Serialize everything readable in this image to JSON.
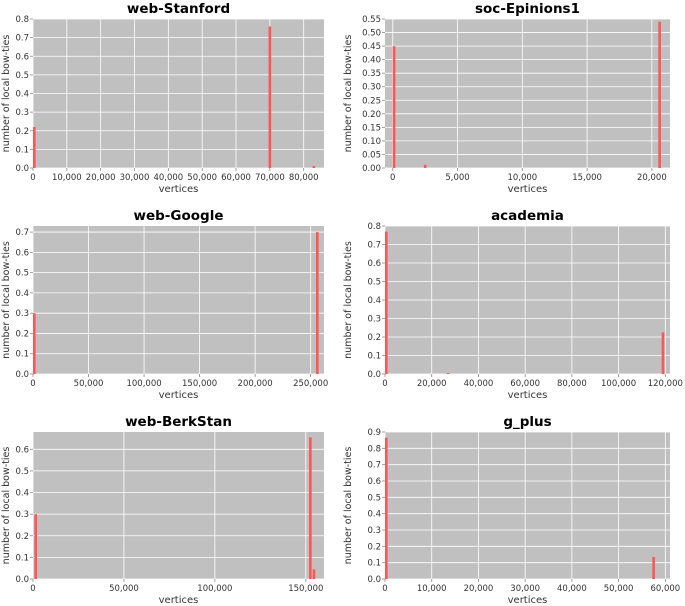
{
  "colors": {
    "plot_background": "#c0c0c0",
    "grid": "#ffffff",
    "bar": "#ff5555",
    "axis_text": "#333333",
    "title_text": "#000000"
  },
  "chart_data": [
    {
      "type": "bar",
      "title": "web-Stanford",
      "xlabel": "vertices",
      "ylabel": "number of local bow-ties",
      "xlim": [
        0,
        86000
      ],
      "ylim": [
        0,
        0.8
      ],
      "xticks": [
        0,
        10000,
        20000,
        30000,
        40000,
        50000,
        60000,
        70000,
        80000
      ],
      "xtick_labels": [
        "0",
        "10,000",
        "20,000",
        "30,000",
        "40,000",
        "50,000",
        "60,000",
        "70,000",
        "80,000"
      ],
      "yticks": [
        0,
        0.1,
        0.2,
        0.3,
        0.4,
        0.5,
        0.6,
        0.7,
        0.8
      ],
      "ytick_labels": [
        "0.0",
        "0.1",
        "0.2",
        "0.3",
        "0.4",
        "0.5",
        "0.6",
        "0.7",
        "0.8"
      ],
      "grid": true,
      "x": [
        200,
        70000,
        83000
      ],
      "values": [
        0.22,
        0.76,
        0.01
      ]
    },
    {
      "type": "bar",
      "title": "soc-Epinions1",
      "xlabel": "vertices",
      "ylabel": "number of local bow-ties",
      "xlim": [
        -600,
        21400
      ],
      "ylim": [
        0,
        0.55
      ],
      "xticks": [
        0,
        5000,
        10000,
        15000,
        20000
      ],
      "xtick_labels": [
        "0",
        "5,000",
        "10,000",
        "15,000",
        "20,000"
      ],
      "yticks": [
        0,
        0.05,
        0.1,
        0.15,
        0.2,
        0.25,
        0.3,
        0.35,
        0.4,
        0.45,
        0.5,
        0.55
      ],
      "ytick_labels": [
        "0.00",
        "0.05",
        "0.10",
        "0.15",
        "0.20",
        "0.25",
        "0.30",
        "0.35",
        "0.40",
        "0.45",
        "0.50",
        "0.55"
      ],
      "grid": true,
      "x": [
        100,
        2500,
        20600
      ],
      "values": [
        0.45,
        0.012,
        0.54
      ]
    },
    {
      "type": "bar",
      "title": "web-Google",
      "xlabel": "vertices",
      "ylabel": "number of local bow-ties",
      "xlim": [
        0,
        262000
      ],
      "ylim": [
        0,
        0.73
      ],
      "xticks": [
        0,
        50000,
        100000,
        150000,
        200000,
        250000
      ],
      "xtick_labels": [
        "0",
        "50,000",
        "100,000",
        "150,000",
        "200,000",
        "250,000"
      ],
      "yticks": [
        0,
        0.1,
        0.2,
        0.3,
        0.4,
        0.5,
        0.6,
        0.7
      ],
      "ytick_labels": [
        "0.0",
        "0.1",
        "0.2",
        "0.3",
        "0.4",
        "0.5",
        "0.6",
        "0.7"
      ],
      "grid": true,
      "x": [
        500,
        256000
      ],
      "values": [
        0.3,
        0.7
      ]
    },
    {
      "type": "bar",
      "title": "academia",
      "xlabel": "vertices",
      "ylabel": "number of local bow-ties",
      "xlim": [
        0,
        122000
      ],
      "ylim": [
        0,
        0.8
      ],
      "xticks": [
        0,
        20000,
        40000,
        60000,
        80000,
        100000,
        120000
      ],
      "xtick_labels": [
        "0",
        "20,000",
        "40,000",
        "60,000",
        "80,000",
        "100,000",
        "120,000"
      ],
      "yticks": [
        0,
        0.1,
        0.2,
        0.3,
        0.4,
        0.5,
        0.6,
        0.7,
        0.8
      ],
      "ytick_labels": [
        "0.0",
        "0.1",
        "0.2",
        "0.3",
        "0.4",
        "0.5",
        "0.6",
        "0.7",
        "0.8"
      ],
      "grid": true,
      "x": [
        300,
        27000,
        119000
      ],
      "values": [
        0.77,
        0.005,
        0.225
      ]
    },
    {
      "type": "bar",
      "title": "web-BerkStan",
      "xlabel": "vertices",
      "ylabel": "number of local bow-ties",
      "xlim": [
        0,
        160000
      ],
      "ylim": [
        0,
        0.68
      ],
      "xticks": [
        0,
        50000,
        100000,
        150000
      ],
      "xtick_labels": [
        "0",
        "50,000",
        "100,000",
        "150,000"
      ],
      "yticks": [
        0,
        0.1,
        0.2,
        0.3,
        0.4,
        0.5,
        0.6
      ],
      "ytick_labels": [
        "0.0",
        "0.1",
        "0.2",
        "0.3",
        "0.4",
        "0.5",
        "0.6"
      ],
      "grid": true,
      "x": [
        1500,
        152500,
        154500
      ],
      "values": [
        0.3,
        0.655,
        0.045
      ]
    },
    {
      "type": "bar",
      "title": "g_plus",
      "xlabel": "vertices",
      "ylabel": "number of local bow-ties",
      "xlim": [
        0,
        61000
      ],
      "ylim": [
        0,
        0.9
      ],
      "xticks": [
        0,
        10000,
        20000,
        30000,
        40000,
        50000,
        60000
      ],
      "xtick_labels": [
        "0",
        "10,000",
        "20,000",
        "30,000",
        "40,000",
        "50,000",
        "60,000"
      ],
      "yticks": [
        0,
        0.1,
        0.2,
        0.3,
        0.4,
        0.5,
        0.6,
        0.7,
        0.8,
        0.9
      ],
      "ytick_labels": [
        "0.0",
        "0.1",
        "0.2",
        "0.3",
        "0.4",
        "0.5",
        "0.6",
        "0.7",
        "0.8",
        "0.9"
      ],
      "grid": true,
      "x": [
        200,
        57500
      ],
      "values": [
        0.865,
        0.135
      ]
    }
  ]
}
